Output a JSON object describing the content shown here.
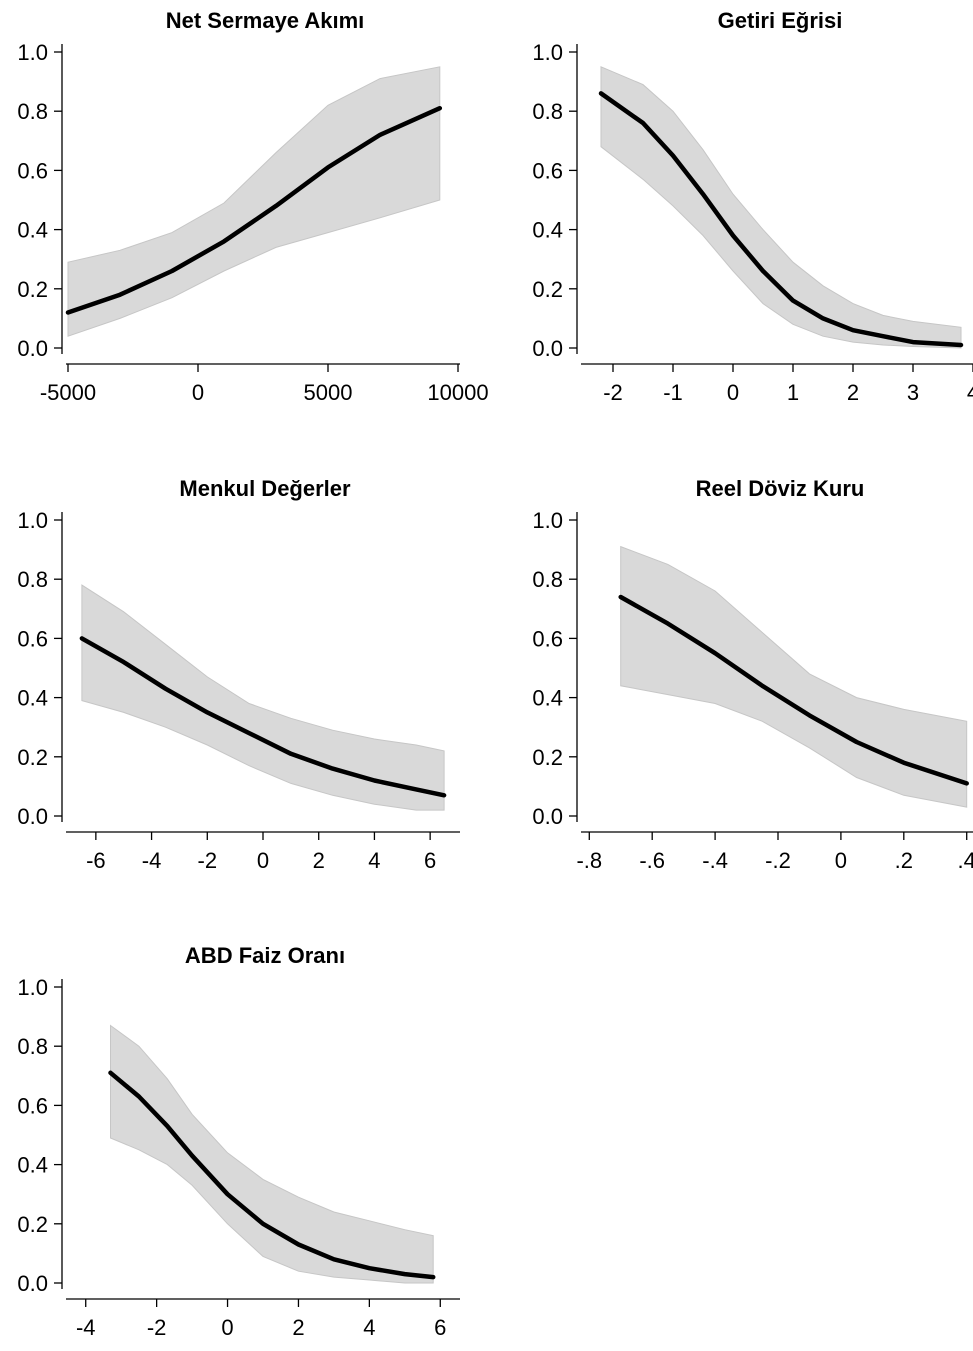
{
  "chart_data": [
    {
      "type": "line",
      "title": "Net Sermaye Akımı",
      "xlabel": "",
      "ylabel": "",
      "xlim": [
        -5000,
        10000
      ],
      "ylim": [
        0,
        1
      ],
      "x_ticks": [
        -5000,
        0,
        5000,
        10000
      ],
      "x_tick_labels": [
        "-5000",
        "0",
        "5000",
        "10000"
      ],
      "y_ticks": [
        0,
        0.2,
        0.4,
        0.6,
        0.8,
        1.0
      ],
      "y_tick_labels": [
        "0.0",
        "0.2",
        "0.4",
        "0.6",
        "0.8",
        "1.0"
      ],
      "grid": false,
      "x": [
        -5000,
        -3000,
        -1000,
        1000,
        3000,
        5000,
        7000,
        9300
      ],
      "y": [
        0.12,
        0.18,
        0.26,
        0.36,
        0.48,
        0.61,
        0.72,
        0.81
      ],
      "lower": [
        0.04,
        0.1,
        0.17,
        0.26,
        0.34,
        0.39,
        0.44,
        0.5
      ],
      "upper": [
        0.29,
        0.33,
        0.39,
        0.49,
        0.66,
        0.82,
        0.91,
        0.95
      ]
    },
    {
      "type": "line",
      "title": "Getiri Eğrisi",
      "xlabel": "",
      "ylabel": "",
      "xlim": [
        -2.5,
        4
      ],
      "ylim": [
        0,
        1
      ],
      "x_ticks": [
        -2,
        -1,
        0,
        1,
        2,
        3,
        4
      ],
      "x_tick_labels": [
        "-2",
        "-1",
        "0",
        "1",
        "2",
        "3",
        "4"
      ],
      "y_ticks": [
        0,
        0.2,
        0.4,
        0.6,
        0.8,
        1.0
      ],
      "y_tick_labels": [
        "0.0",
        "0.2",
        "0.4",
        "0.6",
        "0.8",
        "1.0"
      ],
      "grid": false,
      "x": [
        -2.2,
        -1.5,
        -1.0,
        -0.5,
        0,
        0.5,
        1.0,
        1.5,
        2.0,
        2.5,
        3.0,
        3.8
      ],
      "y": [
        0.86,
        0.76,
        0.65,
        0.52,
        0.38,
        0.26,
        0.16,
        0.1,
        0.06,
        0.04,
        0.02,
        0.01
      ],
      "lower": [
        0.68,
        0.57,
        0.48,
        0.38,
        0.26,
        0.15,
        0.08,
        0.04,
        0.02,
        0.01,
        0.005,
        0.0
      ],
      "upper": [
        0.95,
        0.89,
        0.8,
        0.67,
        0.52,
        0.4,
        0.29,
        0.21,
        0.15,
        0.11,
        0.09,
        0.07
      ]
    },
    {
      "type": "line",
      "title": "Menkul Değerler",
      "xlabel": "",
      "ylabel": "",
      "xlim": [
        -7,
        7
      ],
      "ylim": [
        0,
        1
      ],
      "x_ticks": [
        -6,
        -4,
        -2,
        0,
        2,
        4,
        6
      ],
      "x_tick_labels": [
        "-6",
        "-4",
        "-2",
        "0",
        "2",
        "4",
        "6"
      ],
      "y_ticks": [
        0,
        0.2,
        0.4,
        0.6,
        0.8,
        1.0
      ],
      "y_tick_labels": [
        "0.0",
        "0.2",
        "0.4",
        "0.6",
        "0.8",
        "1.0"
      ],
      "grid": false,
      "x": [
        -6.5,
        -5,
        -3.5,
        -2,
        -0.5,
        1,
        2.5,
        4,
        5.5,
        6.5
      ],
      "y": [
        0.6,
        0.52,
        0.43,
        0.35,
        0.28,
        0.21,
        0.16,
        0.12,
        0.09,
        0.07
      ],
      "lower": [
        0.39,
        0.35,
        0.3,
        0.24,
        0.17,
        0.11,
        0.07,
        0.04,
        0.02,
        0.02
      ],
      "upper": [
        0.78,
        0.69,
        0.58,
        0.47,
        0.38,
        0.33,
        0.29,
        0.26,
        0.24,
        0.22
      ]
    },
    {
      "type": "line",
      "title": "Reel Döviz Kuru",
      "xlabel": "",
      "ylabel": "",
      "xlim": [
        -0.82,
        0.42
      ],
      "ylim": [
        0,
        1
      ],
      "x_ticks": [
        -0.8,
        -0.6,
        -0.4,
        -0.2,
        0,
        0.2,
        0.4
      ],
      "x_tick_labels": [
        "-.8",
        "-.6",
        "-.4",
        "-.2",
        "0",
        ".2",
        ".4"
      ],
      "y_ticks": [
        0,
        0.2,
        0.4,
        0.6,
        0.8,
        1.0
      ],
      "y_tick_labels": [
        "0.0",
        "0.2",
        "0.4",
        "0.6",
        "0.8",
        "1.0"
      ],
      "grid": false,
      "x": [
        -0.7,
        -0.55,
        -0.4,
        -0.25,
        -0.1,
        0.05,
        0.2,
        0.4
      ],
      "y": [
        0.74,
        0.65,
        0.55,
        0.44,
        0.34,
        0.25,
        0.18,
        0.11
      ],
      "lower": [
        0.44,
        0.41,
        0.38,
        0.32,
        0.23,
        0.13,
        0.07,
        0.03
      ],
      "upper": [
        0.91,
        0.85,
        0.76,
        0.62,
        0.48,
        0.4,
        0.36,
        0.32
      ]
    },
    {
      "type": "line",
      "title": "ABD Faiz Oranı",
      "xlabel": "",
      "ylabel": "",
      "xlim": [
        -4.5,
        6.5
      ],
      "ylim": [
        0,
        1
      ],
      "x_ticks": [
        -4,
        -2,
        0,
        2,
        4,
        6
      ],
      "x_tick_labels": [
        "-4",
        "-2",
        "0",
        "2",
        "4",
        "6"
      ],
      "y_ticks": [
        0,
        0.2,
        0.4,
        0.6,
        0.8,
        1.0
      ],
      "y_tick_labels": [
        "0.0",
        "0.2",
        "0.4",
        "0.6",
        "0.8",
        "1.0"
      ],
      "grid": false,
      "x": [
        -3.3,
        -2.5,
        -1.7,
        -1,
        0,
        1,
        2,
        3,
        4,
        5,
        5.8
      ],
      "y": [
        0.71,
        0.63,
        0.53,
        0.43,
        0.3,
        0.2,
        0.13,
        0.08,
        0.05,
        0.03,
        0.02
      ],
      "lower": [
        0.49,
        0.45,
        0.4,
        0.33,
        0.2,
        0.09,
        0.04,
        0.02,
        0.01,
        0.0,
        0.0
      ],
      "upper": [
        0.87,
        0.8,
        0.69,
        0.57,
        0.44,
        0.35,
        0.29,
        0.24,
        0.21,
        0.18,
        0.16
      ]
    }
  ]
}
